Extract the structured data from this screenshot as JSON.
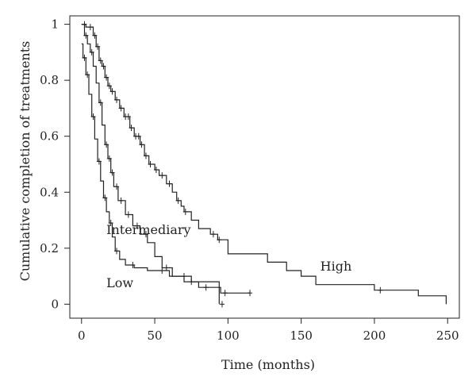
{
  "chart_data": {
    "type": "line",
    "subtype": "kaplan-meier step curves",
    "title": "",
    "xlabel": "Time (months)",
    "ylabel": "Cumulative completion of treatments",
    "xlim": [
      -8,
      258
    ],
    "ylim": [
      -0.05,
      1.03
    ],
    "x_ticks": [
      0,
      50,
      100,
      150,
      200,
      250
    ],
    "x_tick_labels": [
      "0",
      "50",
      "100",
      "150",
      "200",
      "250"
    ],
    "y_ticks": [
      0,
      0.2,
      0.4,
      0.6,
      0.8,
      1
    ],
    "y_tick_labels": [
      "0",
      "0.2",
      "0.4",
      "0.6",
      "0.8",
      "1"
    ],
    "grid": false,
    "legend": "none (curves labeled inline)",
    "series": [
      {
        "name": "High",
        "label_at": [
          163,
          0.12
        ],
        "x": [
          0,
          3,
          8,
          10,
          12,
          14,
          16,
          18,
          20,
          23,
          26,
          29,
          33,
          36,
          40,
          43,
          46,
          50,
          53,
          58,
          62,
          65,
          68,
          70,
          75,
          80,
          88,
          93,
          100,
          110,
          127,
          140,
          150,
          160,
          200,
          230,
          249
        ],
        "y": [
          1.0,
          0.99,
          0.96,
          0.92,
          0.87,
          0.85,
          0.81,
          0.78,
          0.76,
          0.73,
          0.7,
          0.67,
          0.63,
          0.6,
          0.57,
          0.53,
          0.5,
          0.48,
          0.46,
          0.43,
          0.4,
          0.37,
          0.35,
          0.33,
          0.3,
          0.27,
          0.25,
          0.23,
          0.18,
          0.18,
          0.15,
          0.12,
          0.1,
          0.07,
          0.05,
          0.03,
          0.0
        ],
        "censored_x": [
          2,
          6,
          9,
          11,
          13,
          15,
          17,
          19,
          21,
          24,
          27,
          30,
          32,
          34,
          37,
          39,
          41,
          44,
          47,
          51,
          55,
          60,
          66,
          71,
          90,
          94,
          204
        ]
      },
      {
        "name": "Intermediary",
        "label_at": [
          17,
          0.25
        ],
        "x": [
          0,
          2,
          4,
          6,
          8,
          10,
          12,
          14,
          16,
          18,
          20,
          22,
          25,
          30,
          35,
          40,
          45,
          50,
          55,
          62,
          70,
          80,
          95,
          115
        ],
        "y": [
          1.0,
          0.96,
          0.93,
          0.9,
          0.85,
          0.79,
          0.72,
          0.64,
          0.57,
          0.52,
          0.47,
          0.42,
          0.37,
          0.32,
          0.28,
          0.25,
          0.22,
          0.17,
          0.13,
          0.1,
          0.08,
          0.06,
          0.04,
          0.04
        ],
        "censored_x": [
          3,
          7,
          13,
          17,
          19,
          21,
          24,
          27,
          32,
          38,
          44,
          58,
          75,
          85,
          98,
          115
        ]
      },
      {
        "name": "Low",
        "label_at": [
          17,
          0.06
        ],
        "x": [
          0,
          1,
          3,
          5,
          7,
          9,
          11,
          13,
          15,
          17,
          19,
          21,
          23,
          26,
          30,
          36,
          45,
          60,
          75,
          94
        ],
        "y": [
          0.93,
          0.88,
          0.82,
          0.75,
          0.67,
          0.59,
          0.51,
          0.44,
          0.38,
          0.33,
          0.29,
          0.24,
          0.19,
          0.16,
          0.14,
          0.13,
          0.12,
          0.1,
          0.08,
          0.0
        ],
        "censored_x": [
          2,
          4,
          8,
          12,
          16,
          20,
          24,
          35,
          55,
          70,
          96
        ]
      }
    ]
  }
}
